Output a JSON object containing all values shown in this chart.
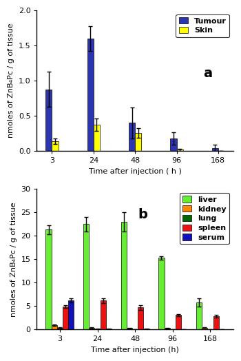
{
  "time_labels": [
    "3",
    "24",
    "48",
    "96",
    "168"
  ],
  "panel_a": {
    "title": "a",
    "ylabel": "nmoles of ZnB₄Pc / g of tissue",
    "xlabel": "Time after injection ( h )",
    "ylim": [
      0,
      2.0
    ],
    "yticks": [
      0.0,
      0.5,
      1.0,
      1.5,
      2.0
    ],
    "tumour_values": [
      0.875,
      1.6,
      0.4,
      0.175,
      0.04
    ],
    "tumour_errors": [
      0.25,
      0.18,
      0.22,
      0.09,
      0.05
    ],
    "skin_values": [
      0.14,
      0.375,
      0.255,
      0.02,
      0.0
    ],
    "skin_errors": [
      0.04,
      0.09,
      0.07,
      0.015,
      0.0
    ],
    "tumour_color": "#2B35AF",
    "skin_color": "#FFFF00",
    "legend_labels": [
      "Tumour",
      "Skin"
    ]
  },
  "panel_b": {
    "title": "b",
    "ylabel": "nmoles of ZnB₄Pc / g of tissue",
    "xlabel": "Time after injection (h)",
    "ylim": [
      0,
      30
    ],
    "yticks": [
      0,
      5,
      10,
      15,
      20,
      25,
      30
    ],
    "liver_values": [
      21.3,
      22.5,
      23.0,
      15.3,
      5.8
    ],
    "liver_errors": [
      0.9,
      1.5,
      2.1,
      0.4,
      0.9
    ],
    "kidney_values": [
      0.9,
      0.35,
      0.3,
      0.3,
      0.4
    ],
    "kidney_errors": [
      0.15,
      0.1,
      0.05,
      0.05,
      0.1
    ],
    "lung_values": [
      0.35,
      0.12,
      0.08,
      0.0,
      0.0
    ],
    "lung_errors": [
      0.1,
      0.05,
      0.03,
      0.0,
      0.0
    ],
    "spleen_values": [
      4.9,
      6.2,
      4.7,
      3.1,
      2.85
    ],
    "spleen_errors": [
      0.3,
      0.5,
      0.5,
      0.25,
      0.3
    ],
    "serum_values": [
      6.2,
      0.15,
      0.12,
      0.0,
      0.0
    ],
    "serum_errors": [
      0.4,
      0.05,
      0.03,
      0.0,
      0.0
    ],
    "liver_color": "#66EE33",
    "kidney_color": "#FF8800",
    "lung_color": "#006600",
    "spleen_color": "#EE1111",
    "serum_color": "#1111BB",
    "legend_labels": [
      "liver",
      "kidney",
      "lung",
      "spleen",
      "serum"
    ]
  },
  "bar_width": 0.15,
  "background_color": "#ffffff",
  "plot_bg_color": "#ffffff",
  "font_size": 9,
  "label_fontsize": 8,
  "tick_fontsize": 8,
  "legend_fontsize": 8,
  "title_fontsize": 14
}
